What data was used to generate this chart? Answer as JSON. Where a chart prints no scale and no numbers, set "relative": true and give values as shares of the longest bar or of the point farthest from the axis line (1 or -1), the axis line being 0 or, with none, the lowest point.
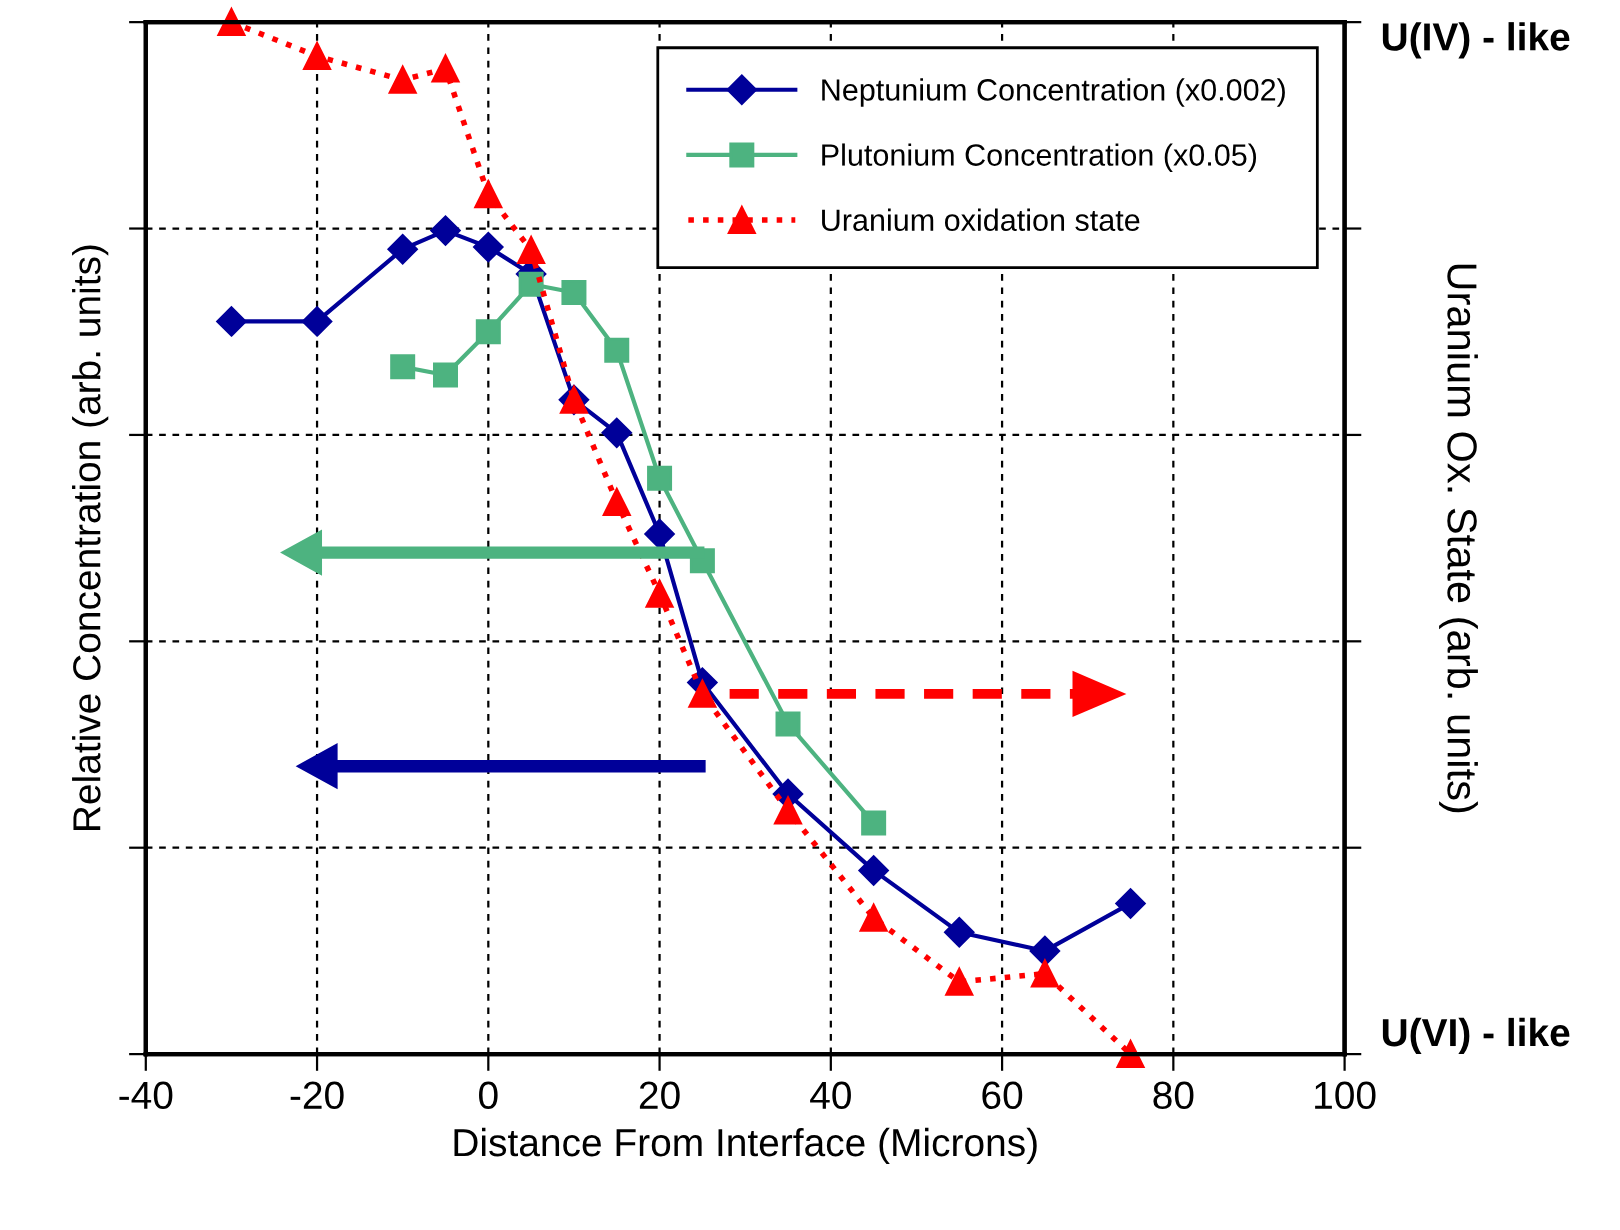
{
  "chart_data": {
    "type": "line",
    "relative": true,
    "xlabel": "Distance From Interface (Microns)",
    "ylabel": "Relative Concentration (arb. units)",
    "y2label": "Uranium Ox. State (arb. units)",
    "xlim": [
      -40,
      100
    ],
    "xticks": [
      -40,
      -20,
      0,
      20,
      40,
      60,
      80,
      100
    ],
    "annotations": [
      "U(IV) - like",
      "U(VI) - like"
    ],
    "grid": true,
    "legend": "top right",
    "series": [
      {
        "name": "Neptunium Concentration (x0.002)",
        "color": "#000099",
        "marker": "diamond",
        "line_style": "solid",
        "x": [
          -30,
          -20,
          -10,
          -5,
          0,
          5,
          10,
          15,
          20,
          25,
          35,
          45,
          55,
          65,
          75
        ],
        "values": [
          0.71,
          0.71,
          0.78,
          0.798,
          0.782,
          0.756,
          0.634,
          0.602,
          0.504,
          0.36,
          0.252,
          0.178,
          0.118,
          0.1,
          0.146
        ]
      },
      {
        "name": "Plutonium Concentration (x0.05)",
        "color": "#4db380",
        "marker": "square",
        "line_style": "solid",
        "x": [
          -10,
          -5,
          0,
          5,
          10,
          15,
          20,
          25,
          35,
          45
        ],
        "values": [
          0.666,
          0.658,
          0.7,
          0.746,
          0.738,
          0.682,
          0.558,
          0.478,
          0.32,
          0.224
        ]
      },
      {
        "name": "Uranium oxidation state",
        "color": "#ff0000",
        "marker": "triangle",
        "line_style": "dotted",
        "x": [
          -30,
          -20,
          -10,
          -5,
          0,
          5,
          10,
          15,
          20,
          25,
          35,
          45,
          55,
          65,
          75
        ],
        "values": [
          1.0,
          0.967,
          0.944,
          0.955,
          0.833,
          0.779,
          0.634,
          0.535,
          0.446,
          0.349,
          0.236,
          0.132,
          0.07,
          0.078,
          0.0
        ]
      }
    ]
  }
}
